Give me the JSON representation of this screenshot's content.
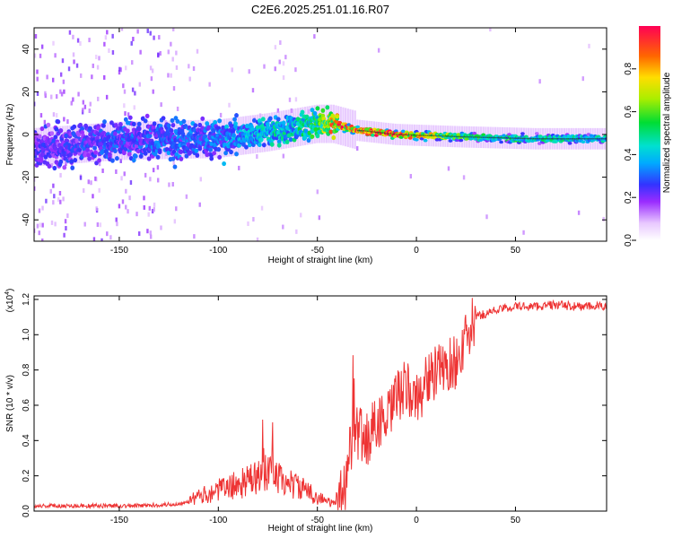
{
  "title": "C2E6.2025.251.01.16.R07",
  "chart_data": [
    {
      "type": "heatmap",
      "xlabel": "Height of straight line (km)",
      "ylabel": "Frequency (Hz)",
      "xlim": [
        -193,
        96
      ],
      "ylim": [
        -50,
        50
      ],
      "xticks": [
        -150,
        -100,
        -50,
        0,
        50
      ],
      "yticks": [
        -40,
        -20,
        0,
        20,
        40
      ],
      "colorbar": {
        "label": "Normalized spectral amplitude",
        "range": [
          0,
          1
        ],
        "ticks": [
          0.0,
          0.2,
          0.4,
          0.6,
          0.8
        ],
        "tick_labels": [
          "0.0",
          "0.2",
          "0.4",
          "0.6",
          "0.8"
        ]
      },
      "ridge": [
        {
          "x": -193,
          "f": -6,
          "amp": 0.25
        },
        {
          "x": -150,
          "f": -3,
          "amp": 0.3
        },
        {
          "x": -100,
          "f": -2,
          "amp": 0.35
        },
        {
          "x": -75,
          "f": 1,
          "amp": 0.45
        },
        {
          "x": -50,
          "f": 5,
          "amp": 0.55
        },
        {
          "x": -42,
          "f": 5,
          "amp": 0.9
        },
        {
          "x": -30,
          "f": 2,
          "amp": 0.95
        },
        {
          "x": -10,
          "f": 0,
          "amp": 1.0
        },
        {
          "x": 20,
          "f": -1,
          "amp": 0.6
        },
        {
          "x": 60,
          "f": -2,
          "amp": 0.5
        },
        {
          "x": 96,
          "f": -2,
          "amp": 0.45
        }
      ]
    },
    {
      "type": "line",
      "xlabel": "Height of straight line (km)",
      "ylabel": "SNR (10 * v/v)",
      "yscale_label": "(x10",
      "yscale_exp": "4",
      "yscale_close": ")",
      "xlim": [
        -193,
        96
      ],
      "ylim": [
        0,
        1.22
      ],
      "xticks": [
        -150,
        -100,
        -50,
        0,
        50
      ],
      "yticks": [
        0.0,
        0.2,
        0.4,
        0.6,
        0.8,
        1.0,
        1.2
      ],
      "ytick_labels": [
        "0.0",
        "0.2",
        "0.4",
        "0.6",
        "0.8",
        "1.0",
        "1.2"
      ],
      "color": "#ee3333",
      "x": [
        -193,
        -170,
        -140,
        -120,
        -110,
        -100,
        -90,
        -80,
        -75,
        -70,
        -60,
        -50,
        -42,
        -36,
        -33,
        -30,
        -25,
        -20,
        -15,
        -10,
        -5,
        0,
        5,
        10,
        15,
        20,
        25,
        30,
        40,
        50,
        60,
        70,
        80,
        96
      ],
      "y": [
        0.03,
        0.03,
        0.03,
        0.04,
        0.08,
        0.12,
        0.15,
        0.19,
        0.22,
        0.18,
        0.14,
        0.08,
        0.04,
        0.15,
        0.38,
        0.45,
        0.4,
        0.52,
        0.5,
        0.65,
        0.7,
        0.62,
        0.75,
        0.78,
        0.82,
        0.85,
        0.96,
        1.1,
        1.14,
        1.16,
        1.16,
        1.17,
        1.16,
        1.16
      ]
    }
  ]
}
